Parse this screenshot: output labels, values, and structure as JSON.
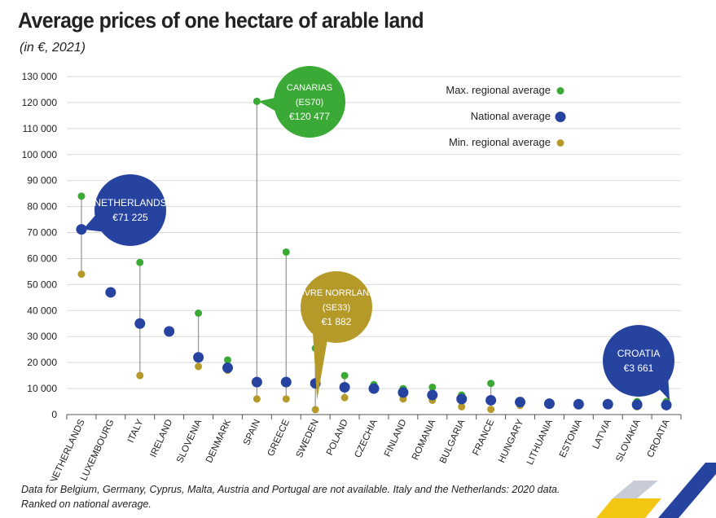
{
  "title": "Average prices of one hectare of arable land",
  "subtitle": "(in €, 2021)",
  "footnote": {
    "line1": "Data for Belgium, Germany, Cyprus, Malta, Austria and Portugal are not available. Italy and the Netherlands: 2020 data.",
    "line2": "Ranked on national average."
  },
  "colors": {
    "max": "#3aa935",
    "national": "#2743a0",
    "min": "#b59a2a",
    "grid": "#d9d9d9",
    "stem": "#9a9a9a"
  },
  "chart_data": {
    "type": "scatter",
    "title": "Average prices of one hectare of arable land",
    "subtitle": "(in €, 2021)",
    "xlabel": "",
    "ylabel": "",
    "ylim": [
      0,
      130000
    ],
    "yticks": [
      0,
      10000,
      20000,
      30000,
      40000,
      50000,
      60000,
      70000,
      80000,
      90000,
      100000,
      110000,
      120000,
      130000
    ],
    "ytick_labels": [
      "0",
      "10 000",
      "20 000",
      "30 000",
      "40 000",
      "50 000",
      "60 000",
      "70 000",
      "80 000",
      "90 000",
      "100 000",
      "110 000",
      "120 000",
      "130 000"
    ],
    "grid": true,
    "legend_position": "top-right",
    "categories": [
      "NETHERLANDS",
      "LUXEMBOURG",
      "ITALY",
      "IRELAND",
      "SLOVENIA",
      "DENMARK",
      "SPAIN",
      "GREECE",
      "SWEDEN",
      "POLAND",
      "CZECHIA",
      "FINLAND",
      "ROMANIA",
      "BULGARIA",
      "FRANCE",
      "HUNGARY",
      "LITHUANIA",
      "ESTONIA",
      "LATVIA",
      "SLOVAKIA",
      "CROATIA"
    ],
    "series": [
      {
        "name": "Max. regional average",
        "values": [
          84000,
          null,
          58500,
          null,
          39000,
          21000,
          120477,
          62500,
          25500,
          15000,
          11500,
          10000,
          10500,
          7500,
          12000,
          5000,
          null,
          null,
          null,
          5000,
          5000
        ]
      },
      {
        "name": "National average",
        "values": [
          71225,
          47000,
          35000,
          32000,
          22000,
          18000,
          12500,
          12500,
          12000,
          10500,
          10000,
          8500,
          7500,
          6000,
          5500,
          4800,
          4200,
          4000,
          4000,
          3800,
          3661
        ]
      },
      {
        "name": "Min. regional average",
        "values": [
          54000,
          null,
          15000,
          null,
          18500,
          17000,
          6000,
          6000,
          1882,
          6500,
          10000,
          6000,
          5500,
          3000,
          2000,
          3500,
          null,
          null,
          null,
          3000,
          3000
        ]
      }
    ],
    "annotations": [
      {
        "name": "Canarias",
        "lines": [
          "CANARIAS",
          "(ES70)",
          "€120 477"
        ],
        "target": "SPAIN",
        "series": "Max. regional average",
        "color": "max"
      },
      {
        "name": "Netherlands",
        "lines": [
          "NETHERLANDS",
          "€71 225"
        ],
        "target": "NETHERLANDS",
        "series": "National average",
        "color": "national"
      },
      {
        "name": "Ovre Norrland",
        "lines": [
          "ÖVRE NORRLAND",
          "(SE33)",
          "€1 882"
        ],
        "target": "SWEDEN",
        "series": "Min. regional average",
        "color": "min"
      },
      {
        "name": "Croatia",
        "lines": [
          "CROATIA",
          "€3 661"
        ],
        "target": "CROATIA",
        "series": "National average",
        "color": "national"
      }
    ]
  }
}
